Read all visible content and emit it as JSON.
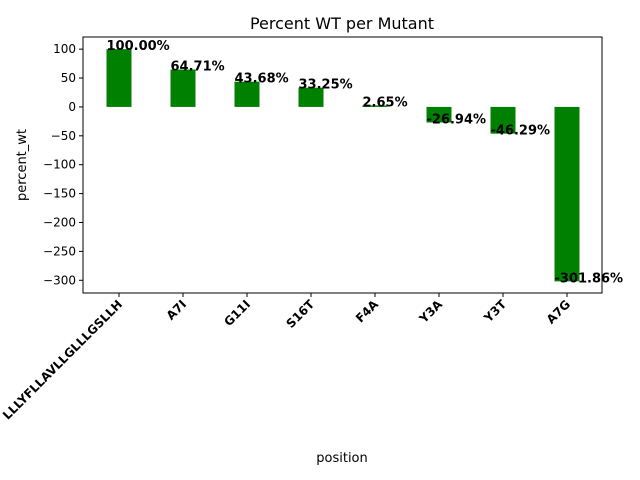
{
  "chart_data": {
    "type": "bar",
    "title": "Percent WT per Mutant",
    "xlabel": "position",
    "ylabel": "percent_wt",
    "categories": [
      "LLLYFLLAVLLGLLLGSLLH",
      "A7I",
      "G11I",
      "S16T",
      "F4A",
      "Y3A",
      "Y3T",
      "A7G"
    ],
    "values": [
      100.0,
      64.71,
      43.68,
      33.25,
      2.65,
      -26.94,
      -46.29,
      -301.86
    ],
    "data_labels": [
      "100.00%",
      "64.71%",
      "43.68%",
      "33.25%",
      "2.65%",
      "-26.94%",
      "-46.29%",
      "-301.86%"
    ],
    "ylim": [
      -322,
      121
    ],
    "yticks": [
      100,
      50,
      0,
      -50,
      -100,
      -150,
      -200,
      -250,
      -300
    ],
    "ytick_labels": [
      "100",
      "50",
      "0",
      "−50",
      "−100",
      "−150",
      "−200",
      "−250",
      "−300"
    ],
    "bar_color": "#008000",
    "grid": false,
    "legend": "none"
  }
}
